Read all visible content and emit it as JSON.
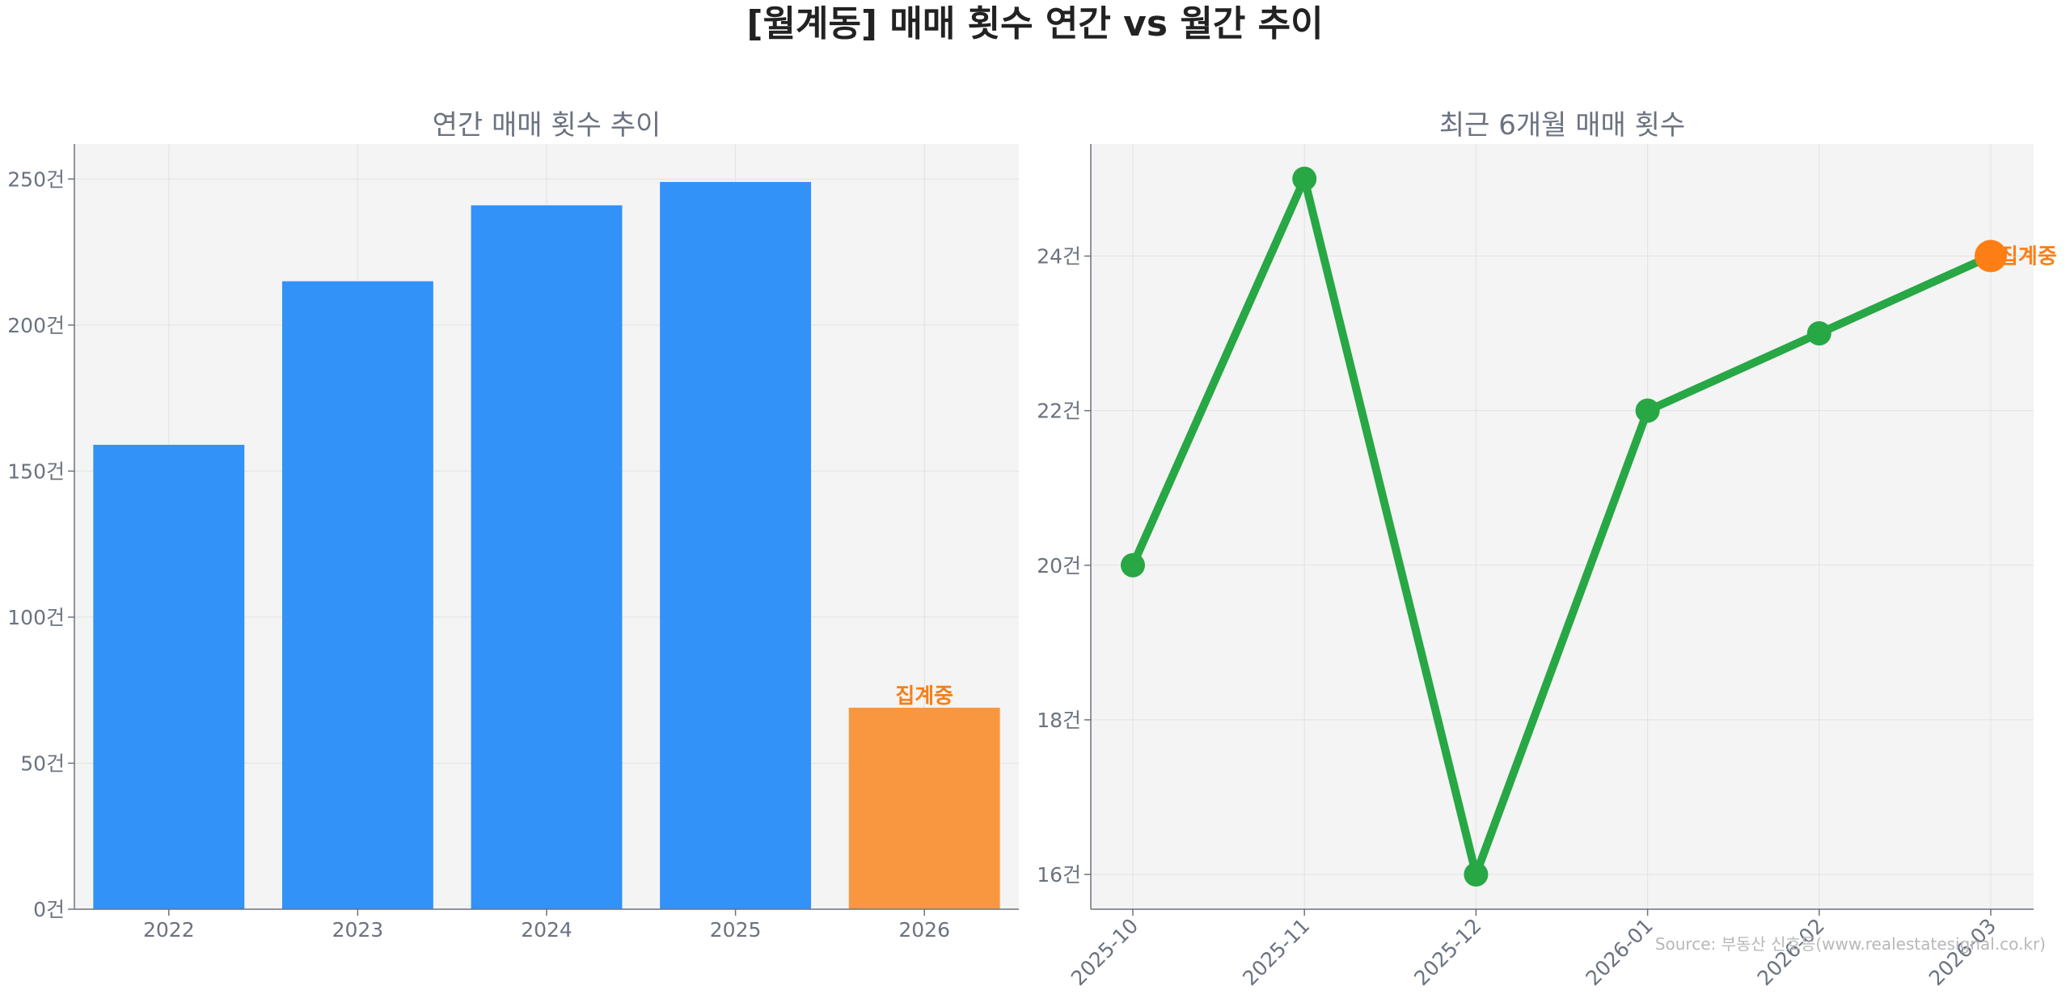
{
  "title": "[월계동] 매매 횟수 연간 vs 월간 추이",
  "source": "Source: 부동산 신호등(www.realestatesignal.co.kr)",
  "chart_data": [
    {
      "type": "bar",
      "title": "연간 매매 횟수 추이",
      "categories": [
        "2022",
        "2023",
        "2024",
        "2025",
        "2026"
      ],
      "values": [
        159,
        215,
        241,
        249,
        69
      ],
      "highlight_index": 4,
      "highlight_label": "집계중",
      "ylim": [
        0,
        262
      ],
      "yticks": [
        0,
        50,
        100,
        150,
        200,
        250
      ],
      "yticks_labels": [
        "0건",
        "50건",
        "100건",
        "150건",
        "200건",
        "250건"
      ],
      "grid": true,
      "colors": {
        "bar": "#3292f8",
        "highlight": "#f99740",
        "highlight_text": "#f57f18"
      }
    },
    {
      "type": "line",
      "title": "최근 6개월 매매 횟수",
      "x": [
        "2025-10",
        "2025-11",
        "2025-12",
        "2026-01",
        "2026-02",
        "2026-03"
      ],
      "values": [
        20,
        25,
        16,
        22,
        23,
        24
      ],
      "highlight_index": 5,
      "highlight_label": "집계중",
      "ylim": [
        15.55,
        25.45
      ],
      "yticks": [
        16,
        18,
        20,
        22,
        24
      ],
      "yticks_labels": [
        "16건",
        "18건",
        "20건",
        "22건",
        "24건"
      ],
      "grid": true,
      "colors": {
        "line": "#28a745",
        "highlight": "#fd7e14"
      }
    }
  ]
}
